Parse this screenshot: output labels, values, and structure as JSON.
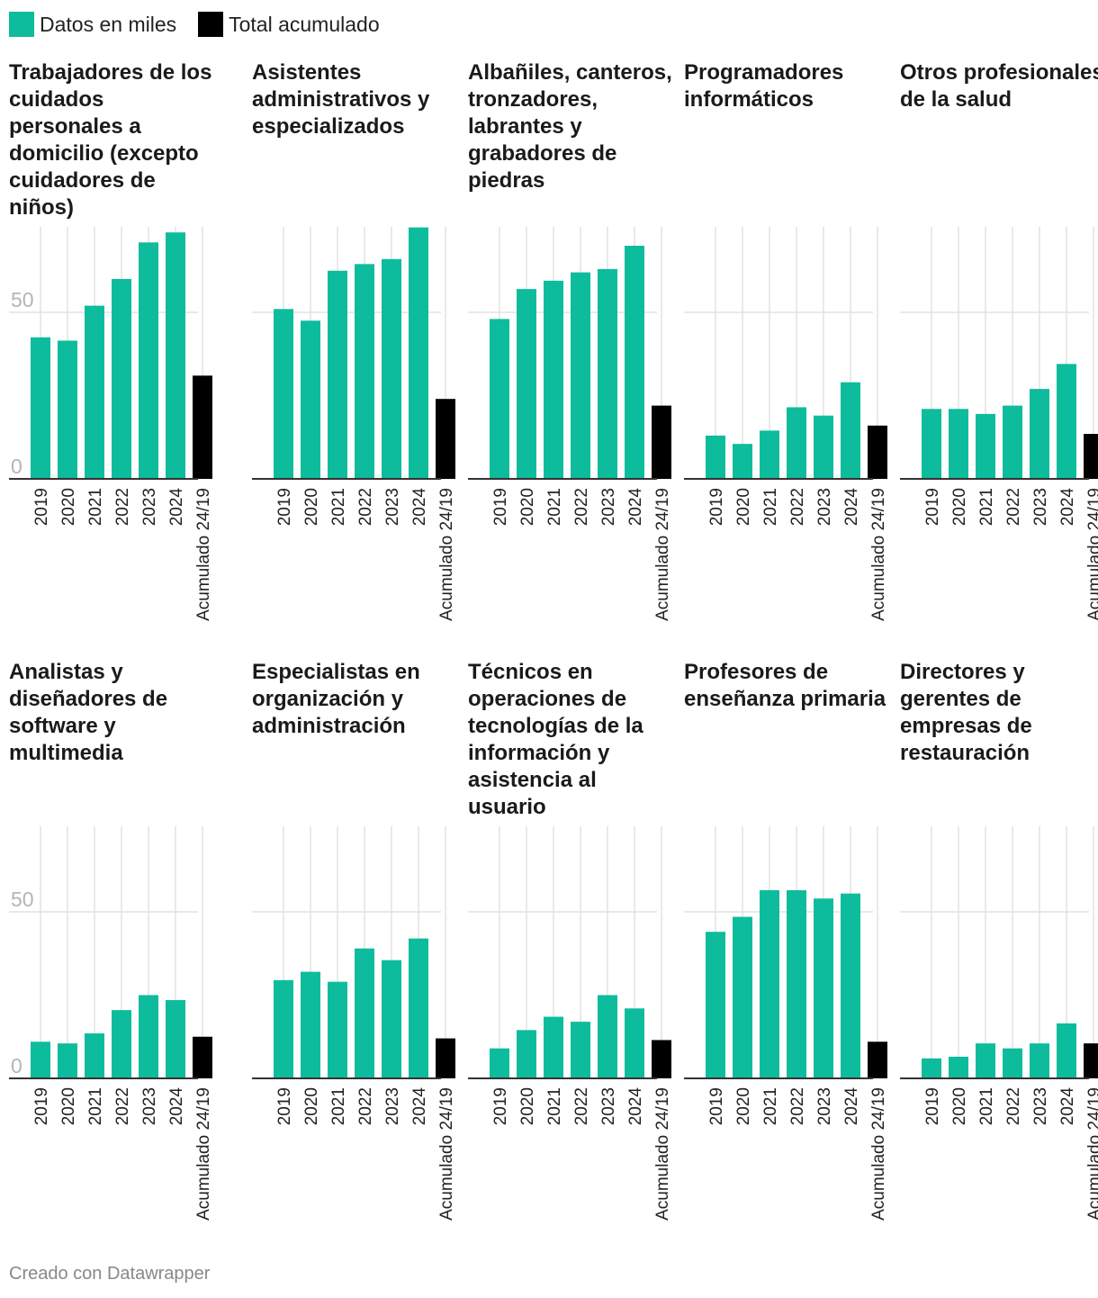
{
  "legend": [
    {
      "label": "Datos en miles",
      "color": "#0dbc9c"
    },
    {
      "label": "Total acumulado",
      "color": "#000000"
    }
  ],
  "footer": "Creado con Datawrapper",
  "colors": {
    "series": "#0dbc9c",
    "total": "#000000",
    "grid": "#e2e2e2",
    "axis_label": "#b5b5b5"
  },
  "chart_data": [
    {
      "type": "bar",
      "title": "Trabajadores de los cuidados personales a domicilio (excepto cuidadores de niños)",
      "categories": [
        "2019",
        "2020",
        "2021",
        "2022",
        "2023",
        "2024",
        "Acumulado 24/19"
      ],
      "values": [
        42.5,
        41.5,
        52,
        60,
        71,
        74,
        31
      ],
      "yticks": [
        0,
        50
      ],
      "ylim": [
        0,
        75
      ]
    },
    {
      "type": "bar",
      "title": "Asistentes administrativos y especializados",
      "categories": [
        "2019",
        "2020",
        "2021",
        "2022",
        "2023",
        "2024",
        "Acumulado 24/19"
      ],
      "values": [
        51,
        47.5,
        62.5,
        64.5,
        66,
        75.5,
        24
      ],
      "yticks": [
        0,
        50
      ],
      "ylim": [
        0,
        75
      ]
    },
    {
      "type": "bar",
      "title": "Albañiles, canteros, tronzadores, labrantes y grabadores de piedras",
      "categories": [
        "2019",
        "2020",
        "2021",
        "2022",
        "2023",
        "2024",
        "Acumulado 24/19"
      ],
      "values": [
        48,
        57,
        59.5,
        62,
        63,
        70,
        22
      ],
      "yticks": [
        0,
        50
      ],
      "ylim": [
        0,
        75
      ]
    },
    {
      "type": "bar",
      "title": "Programadores informáticos",
      "categories": [
        "2019",
        "2020",
        "2021",
        "2022",
        "2023",
        "2024",
        "Acumulado 24/19"
      ],
      "values": [
        13,
        10.5,
        14.5,
        21.5,
        19,
        29,
        16
      ],
      "yticks": [
        0,
        50
      ],
      "ylim": [
        0,
        75
      ]
    },
    {
      "type": "bar",
      "title": "Otros profesionales de la salud",
      "categories": [
        "2019",
        "2020",
        "2021",
        "2022",
        "2023",
        "2024",
        "Acumulado 24/19"
      ],
      "values": [
        21,
        21,
        19.5,
        22,
        27,
        34.5,
        13.5
      ],
      "yticks": [
        0,
        50
      ],
      "ylim": [
        0,
        75
      ]
    },
    {
      "type": "bar",
      "title": "Analistas y diseñadores de software y multimedia",
      "categories": [
        "2019",
        "2020",
        "2021",
        "2022",
        "2023",
        "2024",
        "Acumulado 24/19"
      ],
      "values": [
        11,
        10.5,
        13.5,
        20.5,
        25,
        23.5,
        12.5
      ],
      "yticks": [
        0,
        50
      ],
      "ylim": [
        0,
        75
      ]
    },
    {
      "type": "bar",
      "title": "Especialistas en organización y administración",
      "categories": [
        "2019",
        "2020",
        "2021",
        "2022",
        "2023",
        "2024",
        "Acumulado 24/19"
      ],
      "values": [
        29.5,
        32,
        29,
        39,
        35.5,
        42,
        12
      ],
      "yticks": [
        0,
        50
      ],
      "ylim": [
        0,
        75
      ]
    },
    {
      "type": "bar",
      "title": "Técnicos en operaciones de tecnologías de la información y asistencia al usuario",
      "categories": [
        "2019",
        "2020",
        "2021",
        "2022",
        "2023",
        "2024",
        "Acumulado 24/19"
      ],
      "values": [
        9,
        14.5,
        18.5,
        17,
        25,
        21,
        11.5
      ],
      "yticks": [
        0,
        50
      ],
      "ylim": [
        0,
        75
      ]
    },
    {
      "type": "bar",
      "title": "Profesores de enseñanza primaria",
      "categories": [
        "2019",
        "2020",
        "2021",
        "2022",
        "2023",
        "2024",
        "Acumulado 24/19"
      ],
      "values": [
        44,
        48.5,
        56.5,
        56.5,
        54,
        55.5,
        11
      ],
      "yticks": [
        0,
        50
      ],
      "ylim": [
        0,
        75
      ]
    },
    {
      "type": "bar",
      "title": "Directores y gerentes de empresas de restauración",
      "categories": [
        "2019",
        "2020",
        "2021",
        "2022",
        "2023",
        "2024",
        "Acumulado 24/19"
      ],
      "values": [
        6,
        6.5,
        10.5,
        9,
        10.5,
        16.5,
        10.5
      ],
      "yticks": [
        0,
        50
      ],
      "ylim": [
        0,
        75
      ]
    }
  ]
}
